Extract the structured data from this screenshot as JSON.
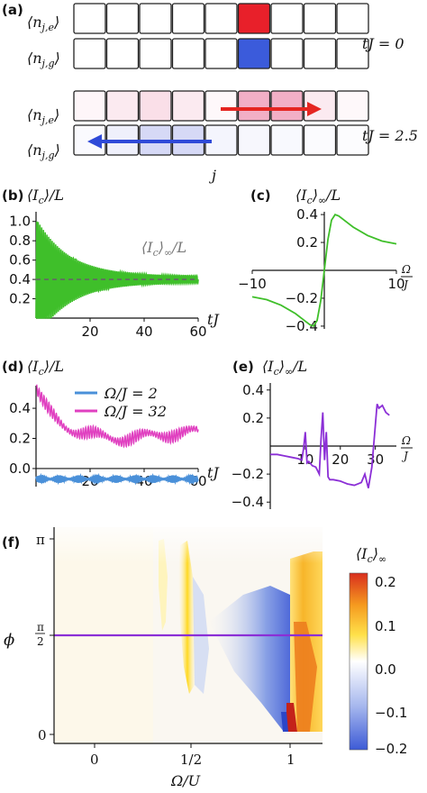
{
  "panel_labels": {
    "a": "(a)",
    "b": "(b)",
    "c": "(c)",
    "d": "(d)",
    "e": "(e)",
    "f": "(f)"
  },
  "panel_a": {
    "row_labels": [
      "⟨n_{j,e}⟩",
      "⟨n_{j,g}⟩",
      "⟨n_{j,e}⟩",
      "⟨n_{j,g}⟩"
    ],
    "time_labels": [
      "tJ = 0",
      "tJ = 2.5"
    ],
    "xlabel": "j",
    "grid_t0_e": [
      0,
      0,
      0,
      0,
      0,
      1,
      0,
      0,
      0
    ],
    "grid_t0_g": [
      0,
      0,
      0,
      0,
      0,
      1,
      0,
      0,
      0
    ],
    "grid_t25_e": [
      0.05,
      0.12,
      0.18,
      0.12,
      0.04,
      0.45,
      0.45,
      0.12,
      0.04
    ],
    "grid_t25_g": [
      0.04,
      0.12,
      0.3,
      0.3,
      0.08,
      0.06,
      0.05,
      0.03,
      0.02
    ],
    "colors": {
      "red": "#e8202a",
      "blue": "#3b5bdb",
      "red_arrow": "#e52521",
      "blue_arrow": "#2f4ad8"
    }
  },
  "chart_data": [
    {
      "panel": "b",
      "type": "line",
      "title": "⟨I_c⟩/L",
      "xlabel": "tJ",
      "ylabel": "",
      "xlim": [
        0,
        60
      ],
      "ylim": [
        0.0,
        1.1
      ],
      "xticks": [
        20,
        40,
        60
      ],
      "yticks": [
        0.2,
        0.4,
        0.6,
        0.8,
        1.0
      ],
      "yticklabels": [
        "0.2",
        "0.4",
        "0.6",
        "0.8",
        "1.0"
      ],
      "annotation": "⟨I_c⟩∞/L",
      "steady_value": 0.4,
      "series": [
        {
          "color": "#3fbf2a",
          "peak": 1.0,
          "steady": 0.4,
          "decay": 12,
          "freq": 1.55
        }
      ]
    },
    {
      "panel": "c",
      "type": "line",
      "title": "⟨I_c⟩∞/L",
      "xlabel": "Ω/J",
      "ylabel": "",
      "xlim": [
        -10,
        10
      ],
      "ylim": [
        -0.42,
        0.42
      ],
      "xticks": [
        -10,
        0,
        10
      ],
      "yticks": [
        -0.4,
        -0.2,
        0.2,
        0.4
      ],
      "yticklabels": [
        "−0.4",
        "−0.2",
        "0.2",
        "0.4"
      ],
      "x": [
        -10,
        -8,
        -6,
        -4,
        -3,
        -2,
        -1.5,
        -1,
        -0.5,
        0,
        0.5,
        1,
        1.5,
        2,
        3,
        4,
        6,
        8,
        10
      ],
      "y": [
        -0.19,
        -0.21,
        -0.25,
        -0.31,
        -0.35,
        -0.39,
        -0.4,
        -0.36,
        -0.22,
        0.0,
        0.22,
        0.36,
        0.4,
        0.39,
        0.35,
        0.31,
        0.25,
        0.21,
        0.19
      ],
      "series": [
        {
          "color": "#3fbf2a"
        }
      ]
    },
    {
      "panel": "d",
      "type": "line",
      "title": "⟨I_c⟩/L",
      "xlabel": "tJ",
      "ylabel": "",
      "xlim": [
        0,
        60
      ],
      "ylim": [
        -0.12,
        0.55
      ],
      "xticks": [
        20,
        40,
        60
      ],
      "yticks": [
        0.0,
        0.2,
        0.4
      ],
      "yticklabels": [
        "0.0",
        "0.2",
        "0.4"
      ],
      "series": [
        {
          "name": "Ω/J = 2",
          "color": "#4a90d9",
          "mean": -0.07,
          "amp": 0.025
        },
        {
          "name": "Ω/J = 32",
          "color": "#e040c0",
          "peak": 0.52,
          "steady": 0.22,
          "amp": 0.04
        }
      ]
    },
    {
      "panel": "e",
      "type": "line",
      "title": "⟨I_c⟩∞/L",
      "xlabel": "Ω/J",
      "ylabel": "",
      "xlim": [
        0,
        36
      ],
      "ylim": [
        -0.45,
        0.45
      ],
      "xticks": [
        10,
        20,
        30
      ],
      "yticks": [
        -0.4,
        -0.2,
        0.2,
        0.4
      ],
      "yticklabels": [
        "−0.4",
        "−0.2",
        "0.2",
        "0.4"
      ],
      "x": [
        0,
        2,
        4,
        6,
        8,
        9,
        9.5,
        10,
        10.5,
        11,
        12,
        13,
        14,
        14.5,
        15,
        15.5,
        16,
        16.5,
        17,
        18,
        20,
        22,
        24,
        26,
        27,
        28,
        29,
        30,
        30.5,
        31,
        32,
        33,
        34
      ],
      "y": [
        -0.06,
        -0.06,
        -0.07,
        -0.08,
        -0.09,
        -0.1,
        -0.02,
        0.1,
        -0.12,
        -0.11,
        -0.14,
        -0.15,
        -0.2,
        0.05,
        0.24,
        -0.1,
        0.1,
        -0.22,
        -0.24,
        -0.24,
        -0.25,
        -0.27,
        -0.28,
        -0.26,
        -0.2,
        -0.3,
        -0.15,
        0.15,
        0.3,
        0.27,
        0.29,
        0.24,
        0.22
      ],
      "series": [
        {
          "color": "#8b2fd6"
        }
      ]
    },
    {
      "panel": "f",
      "type": "heatmap",
      "xlabel": "Ω/U",
      "ylabel": "ϕ",
      "xticks": [
        "0",
        "1/2",
        "1"
      ],
      "yticks": [
        "0",
        "π/2",
        "π"
      ],
      "colorbar_label": "⟨I_c⟩∞",
      "colorbar_ticks": [
        "0.2",
        "0.1",
        "0.0",
        "−0.1",
        "−0.2"
      ],
      "zlim": [
        -0.2,
        0.2
      ],
      "line_color": "#8b2fd6",
      "line_value": "π/2"
    }
  ]
}
